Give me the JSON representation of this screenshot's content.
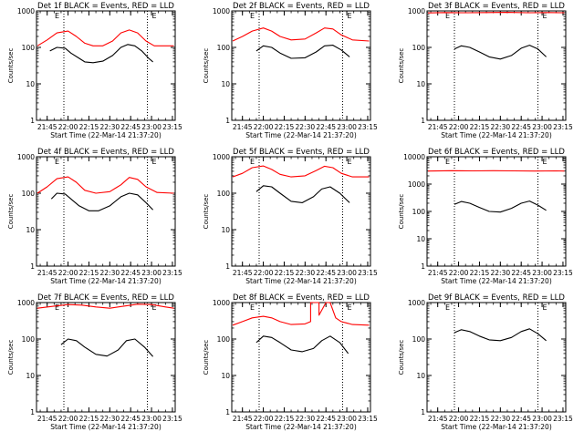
{
  "colors": {
    "events": "#000000",
    "lld": "#ff0000",
    "background": "#ffffff",
    "axis": "#000000"
  },
  "common": {
    "ylabel": "Counts/sec",
    "xlabel": "Start Time (22-Mar-14 21:37:20)",
    "x_ticks": [
      "21:45",
      "22:00",
      "22:15",
      "22:30",
      "22:45",
      "23:00",
      "23:15"
    ],
    "y_ticks": [
      "1",
      "10",
      "100",
      "1000"
    ],
    "y_ticks_f": [
      "1",
      "10",
      "100",
      "1000",
      "10000"
    ],
    "marker_label": "E",
    "vlines": [
      "21:57",
      "22:57"
    ]
  },
  "chart_data": [
    {
      "type": "line",
      "title": "Det 1f BLACK = Events, RED = LLD",
      "y_scale": "log",
      "ylim": [
        1,
        1000
      ],
      "xlim": [
        "21:37:20",
        "23:17:00"
      ],
      "series": [
        {
          "name": "Events",
          "color": "#000000",
          "x": [
            "21:47",
            "21:52",
            "21:58",
            "22:02",
            "22:08",
            "22:12",
            "22:18",
            "22:25",
            "22:32",
            "22:38",
            "22:43",
            "22:48",
            "22:53",
            "22:58",
            "23:01"
          ],
          "y": [
            80,
            100,
            95,
            70,
            50,
            40,
            38,
            42,
            60,
            100,
            120,
            110,
            80,
            50,
            40
          ],
          "gaps_after": [
            14
          ]
        },
        {
          "name": "LLD",
          "color": "#ff0000",
          "x": [
            "21:38",
            "21:45",
            "21:52",
            "22:00",
            "22:06",
            "22:12",
            "22:18",
            "22:25",
            "22:32",
            "22:38",
            "22:44",
            "22:50",
            "22:56",
            "23:02",
            "23:10",
            "23:16"
          ],
          "y": [
            110,
            160,
            250,
            280,
            200,
            130,
            110,
            110,
            150,
            250,
            300,
            250,
            150,
            110,
            110,
            110
          ]
        }
      ]
    },
    {
      "type": "line",
      "title": "Det 2f BLACK = Events, RED = LLD",
      "y_scale": "log",
      "ylim": [
        1,
        1000
      ],
      "xlim": [
        "21:37:20",
        "23:17:00"
      ],
      "series": [
        {
          "name": "Events",
          "color": "#000000",
          "x": [
            "21:55",
            "22:00",
            "22:06",
            "22:12",
            "22:20",
            "22:30",
            "22:38",
            "22:44",
            "22:50",
            "22:56",
            "23:02"
          ],
          "y": [
            80,
            110,
            100,
            70,
            50,
            52,
            75,
            110,
            115,
            85,
            55
          ]
        },
        {
          "name": "LLD",
          "color": "#ff0000",
          "x": [
            "21:38",
            "21:45",
            "21:52",
            "22:00",
            "22:06",
            "22:12",
            "22:20",
            "22:30",
            "22:38",
            "22:44",
            "22:50",
            "22:56",
            "23:04",
            "23:16"
          ],
          "y": [
            150,
            200,
            280,
            340,
            280,
            200,
            160,
            170,
            250,
            340,
            320,
            220,
            160,
            150
          ]
        }
      ]
    },
    {
      "type": "line",
      "title": "Det 3f BLACK = Events, RED = LLD",
      "y_scale": "log",
      "ylim": [
        1,
        1000
      ],
      "xlim": [
        "21:37:20",
        "23:17:00"
      ],
      "series": [
        {
          "name": "Events",
          "color": "#000000",
          "x": [
            "21:57",
            "22:02",
            "22:08",
            "22:15",
            "22:22",
            "22:30",
            "22:38",
            "22:45",
            "22:51",
            "22:57",
            "23:03"
          ],
          "y": [
            90,
            110,
            100,
            75,
            55,
            48,
            60,
            95,
            115,
            90,
            55
          ]
        },
        {
          "name": "LLD",
          "color": "#ff0000",
          "x": [
            "21:38",
            "21:50",
            "22:05",
            "22:20",
            "22:35",
            "22:50",
            "23:05",
            "23:16"
          ],
          "y": [
            880,
            900,
            890,
            900,
            910,
            890,
            900,
            890
          ]
        }
      ]
    },
    {
      "type": "line",
      "title": "Det 4f BLACK = Events, RED = LLD",
      "y_scale": "log",
      "ylim": [
        1,
        1000
      ],
      "xlim": [
        "21:37:20",
        "23:17:00"
      ],
      "series": [
        {
          "name": "Events",
          "color": "#000000",
          "x": [
            "21:48",
            "21:52",
            "21:58",
            "22:02",
            "22:08",
            "22:15",
            "22:22",
            "22:30",
            "22:38",
            "22:44",
            "22:50",
            "22:56",
            "23:01"
          ],
          "y": [
            70,
            100,
            95,
            70,
            45,
            33,
            33,
            45,
            80,
            100,
            90,
            55,
            35
          ]
        },
        {
          "name": "LLD",
          "color": "#ff0000",
          "x": [
            "21:38",
            "21:45",
            "21:52",
            "22:00",
            "22:06",
            "22:12",
            "22:20",
            "22:30",
            "22:38",
            "22:44",
            "22:50",
            "22:56",
            "23:04",
            "23:16"
          ],
          "y": [
            100,
            150,
            250,
            280,
            200,
            120,
            100,
            110,
            170,
            270,
            240,
            150,
            105,
            100
          ]
        }
      ]
    },
    {
      "type": "line",
      "title": "Det 5f BLACK = Events, RED = LLD",
      "y_scale": "log",
      "ylim": [
        1,
        1000
      ],
      "xlim": [
        "21:37:20",
        "23:17:00"
      ],
      "series": [
        {
          "name": "Events",
          "color": "#000000",
          "x": [
            "21:55",
            "22:00",
            "22:06",
            "22:12",
            "22:20",
            "22:28",
            "22:36",
            "22:42",
            "22:48",
            "22:55",
            "23:02"
          ],
          "y": [
            110,
            160,
            150,
            100,
            60,
            55,
            80,
            130,
            150,
            100,
            55
          ]
        },
        {
          "name": "LLD",
          "color": "#ff0000",
          "x": [
            "21:38",
            "21:45",
            "21:52",
            "22:00",
            "22:06",
            "22:12",
            "22:20",
            "22:30",
            "22:38",
            "22:44",
            "22:50",
            "22:56",
            "23:04",
            "23:16"
          ],
          "y": [
            280,
            350,
            500,
            560,
            450,
            330,
            280,
            300,
            420,
            550,
            500,
            350,
            280,
            280
          ]
        }
      ]
    },
    {
      "type": "line",
      "title": "Det 6f BLACK = Events, RED = LLD",
      "y_scale": "log",
      "ylim": [
        1,
        10000
      ],
      "xlim": [
        "21:37:20",
        "23:17:00"
      ],
      "series": [
        {
          "name": "Events",
          "color": "#000000",
          "x": [
            "21:57",
            "22:02",
            "22:08",
            "22:15",
            "22:22",
            "22:30",
            "22:38",
            "22:45",
            "22:51",
            "22:57",
            "23:03"
          ],
          "y": [
            180,
            230,
            200,
            140,
            100,
            95,
            130,
            200,
            240,
            170,
            110
          ]
        },
        {
          "name": "LLD",
          "color": "#ff0000",
          "x": [
            "21:38",
            "21:55",
            "22:10",
            "22:25",
            "22:40",
            "22:55",
            "23:10",
            "23:16"
          ],
          "y": [
            3000,
            3100,
            3050,
            3100,
            3050,
            3000,
            3050,
            3000
          ]
        }
      ]
    },
    {
      "type": "line",
      "title": "Det 7f BLACK = Events, RED = LLD",
      "y_scale": "log",
      "ylim": [
        1,
        1000
      ],
      "xlim": [
        "21:37:20",
        "23:17:00"
      ],
      "series": [
        {
          "name": "Events",
          "color": "#000000",
          "x": [
            "21:55",
            "22:00",
            "22:06",
            "22:12",
            "22:20",
            "22:28",
            "22:36",
            "22:42",
            "22:48",
            "22:55",
            "23:01"
          ],
          "y": [
            70,
            100,
            90,
            60,
            38,
            34,
            50,
            90,
            100,
            60,
            33
          ]
        },
        {
          "name": "LLD",
          "color": "#ff0000",
          "x": [
            "21:38",
            "21:50",
            "22:00",
            "22:10",
            "22:20",
            "22:30",
            "22:40",
            "22:50",
            "23:00",
            "23:10",
            "23:16"
          ],
          "y": [
            700,
            800,
            880,
            850,
            760,
            700,
            800,
            900,
            880,
            760,
            700
          ]
        }
      ]
    },
    {
      "type": "line",
      "title": "Det 8f BLACK = Events, RED = LLD",
      "y_scale": "log",
      "ylim": [
        1,
        1000
      ],
      "xlim": [
        "21:37:20",
        "23:17:00"
      ],
      "series": [
        {
          "name": "Events",
          "color": "#000000",
          "x": [
            "21:55",
            "22:00",
            "22:06",
            "22:12",
            "22:20",
            "22:28",
            "22:36",
            "22:42",
            "22:48",
            "22:55",
            "23:01"
          ],
          "y": [
            80,
            120,
            110,
            80,
            50,
            45,
            55,
            90,
            120,
            80,
            40
          ]
        },
        {
          "name": "LLD",
          "color": "#ff0000",
          "x": [
            "21:38",
            "21:45",
            "21:52",
            "22:00",
            "22:06",
            "22:12",
            "22:20",
            "22:30",
            "22:34",
            "22:34",
            "22:40",
            "22:40",
            "22:45",
            "22:48",
            "22:52",
            "22:56",
            "23:04",
            "23:16"
          ],
          "y": [
            240,
            300,
            380,
            420,
            380,
            300,
            250,
            260,
            300,
            1000,
            1000,
            450,
            1000,
            1000,
            380,
            300,
            250,
            240
          ]
        }
      ]
    },
    {
      "type": "line",
      "title": "Det 9f BLACK = Events, RED = LLD",
      "y_scale": "log",
      "ylim": [
        1,
        1000
      ],
      "xlim": [
        "21:37:20",
        "23:17:00"
      ],
      "series": [
        {
          "name": "Events",
          "color": "#000000",
          "x": [
            "21:57",
            "22:02",
            "22:08",
            "22:15",
            "22:22",
            "22:30",
            "22:38",
            "22:45",
            "22:51",
            "22:57",
            "23:03"
          ],
          "y": [
            150,
            180,
            160,
            120,
            95,
            90,
            110,
            160,
            190,
            140,
            90
          ]
        }
      ]
    }
  ]
}
